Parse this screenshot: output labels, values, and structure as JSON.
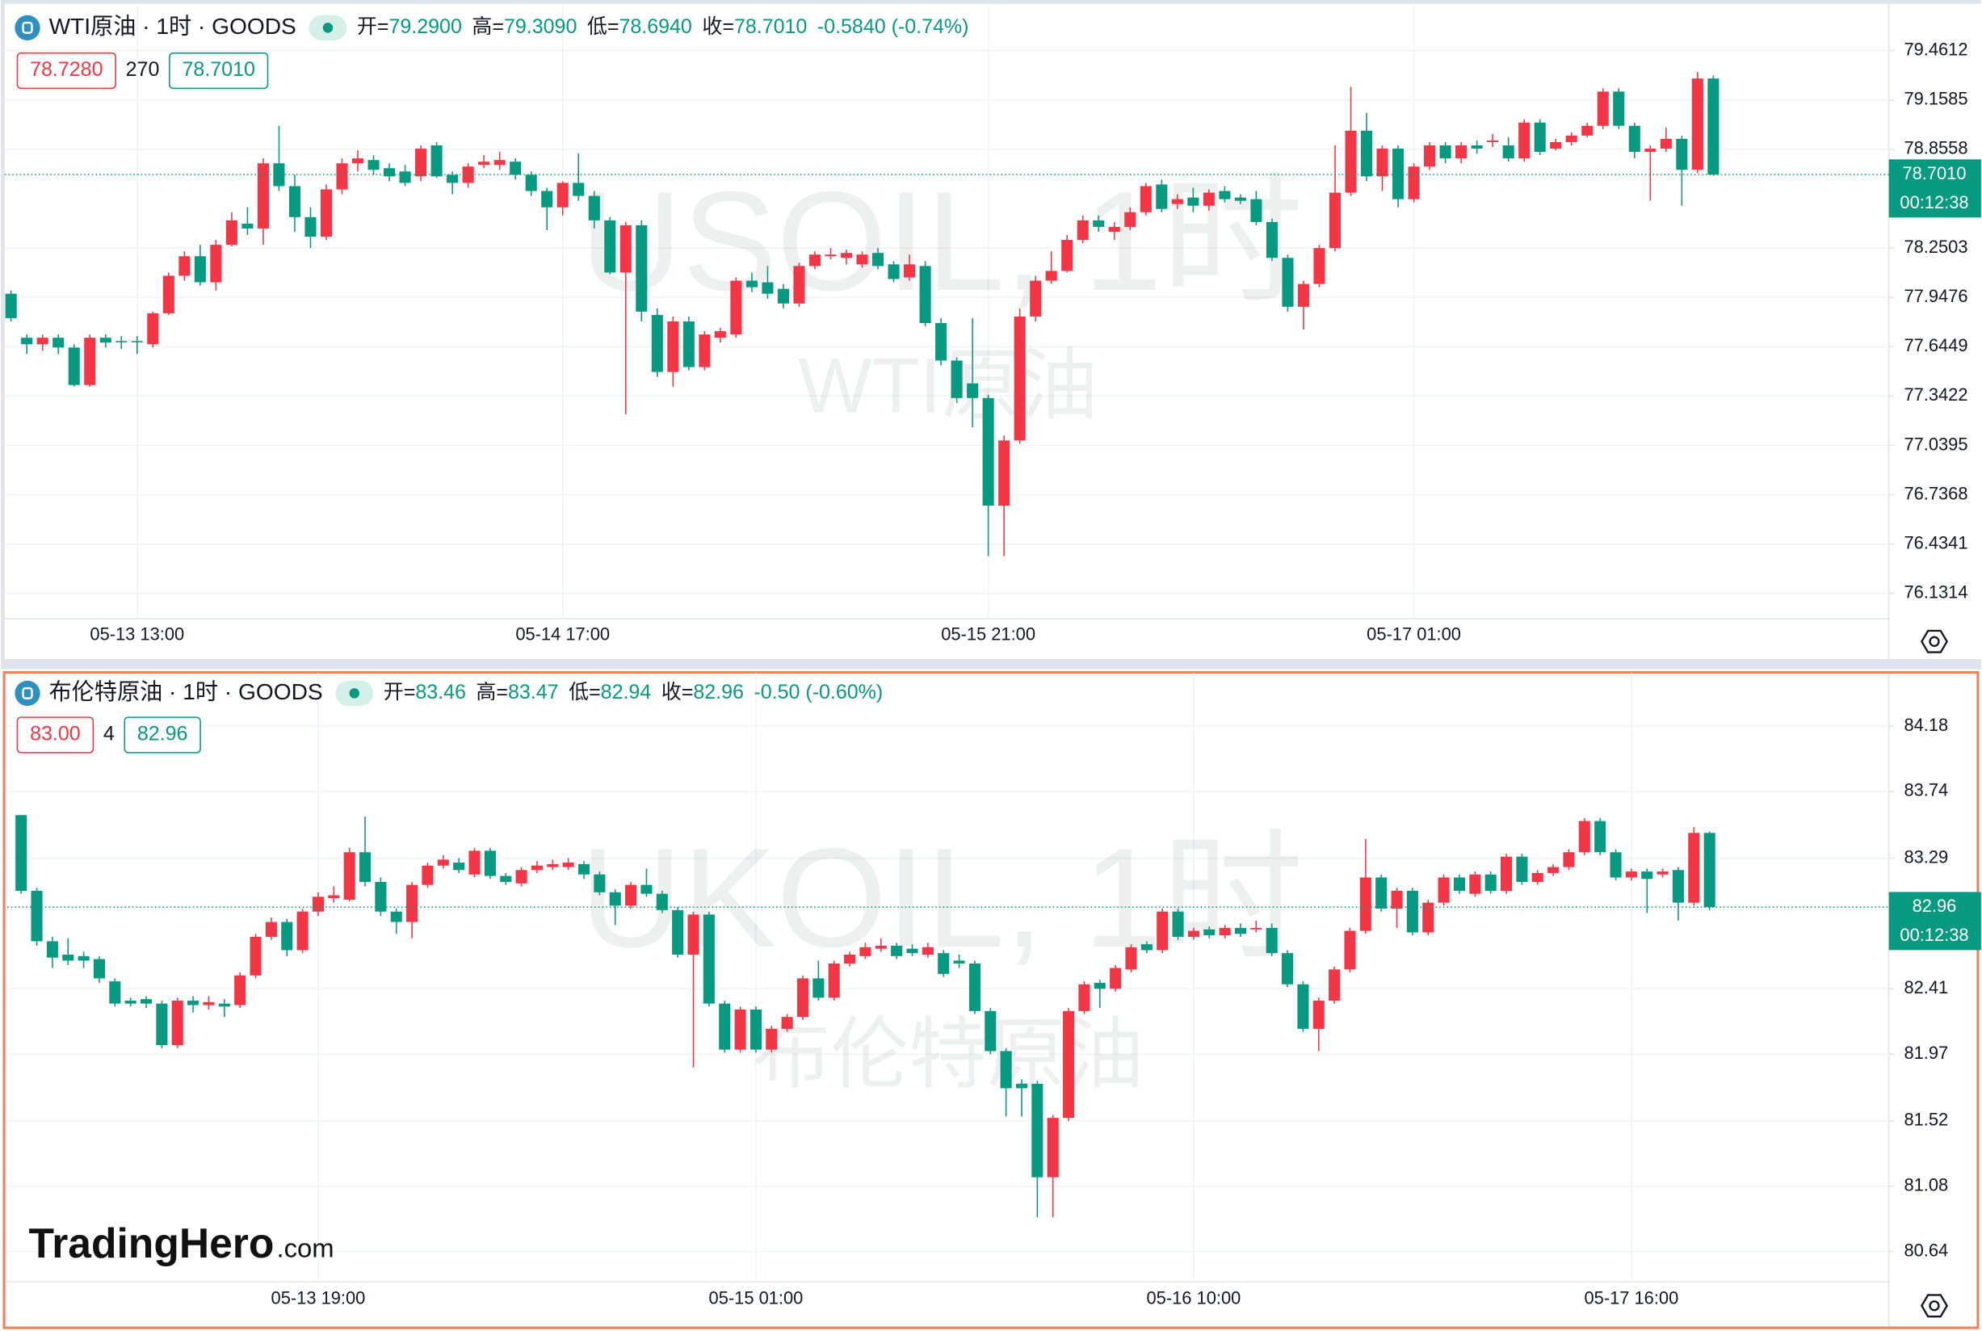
{
  "brand": {
    "name": "TradingHero",
    "suffix": ".com"
  },
  "chart_data": [
    {
      "type": "candlestick",
      "symbol": "WTI原油 · 1时 · GOODS",
      "watermark": "USOIL, 1时",
      "watermark_subtitle": "WTI原油",
      "ohlc_legend": [
        {
          "label": "开=",
          "value": "79.2900"
        },
        {
          "label": "高=",
          "value": "79.3090"
        },
        {
          "label": "低=",
          "value": "78.6940"
        },
        {
          "label": "收=",
          "value": "78.7010"
        }
      ],
      "change": "-0.5840 (-0.74%)",
      "quote": {
        "bid": "78.7280",
        "spread": "270",
        "ask": "78.7010"
      },
      "last_price": {
        "value": 78.701,
        "label": "78.7010",
        "countdown": "00:12:38"
      },
      "up_color": "#f23645",
      "down_color": "#089981",
      "grid": true,
      "ylim": [
        75.976,
        79.733
      ],
      "yticks": [
        79.4612,
        79.1585,
        78.8558,
        78.2503,
        77.9476,
        77.6449,
        77.3422,
        77.0395,
        76.7368,
        76.4341,
        76.1314
      ],
      "categories": [
        null,
        null,
        null,
        null,
        null,
        null,
        null,
        null,
        "05-13 13:00",
        null,
        null,
        null,
        null,
        null,
        null,
        null,
        null,
        null,
        null,
        null,
        null,
        null,
        null,
        null,
        null,
        null,
        null,
        null,
        null,
        null,
        null,
        null,
        null,
        null,
        null,
        "05-14 17:00",
        null,
        null,
        null,
        null,
        null,
        null,
        null,
        null,
        null,
        null,
        null,
        null,
        null,
        null,
        null,
        null,
        null,
        null,
        null,
        null,
        null,
        null,
        null,
        null,
        null,
        null,
        "05-15 21:00",
        null,
        null,
        null,
        null,
        null,
        null,
        null,
        null,
        null,
        null,
        null,
        null,
        null,
        null,
        null,
        null,
        null,
        null,
        null,
        null,
        null,
        null,
        null,
        null,
        null,
        null,
        "05-17 01:00",
        null,
        null,
        null,
        null,
        null,
        null,
        null,
        null,
        null,
        null,
        null,
        null,
        null,
        null,
        null,
        null,
        null,
        null,
        null
      ],
      "open": [
        77.97,
        77.7,
        77.66,
        77.7,
        77.64,
        77.41,
        77.7,
        77.68,
        77.68,
        77.66,
        77.85,
        78.08,
        78.2,
        78.04,
        78.27,
        78.4,
        78.37,
        78.77,
        78.63,
        78.44,
        78.32,
        78.61,
        78.77,
        78.79,
        78.74,
        78.72,
        78.69,
        78.88,
        78.7,
        78.65,
        78.76,
        78.76,
        78.78,
        78.7,
        78.6,
        78.5,
        78.65,
        78.57,
        78.42,
        78.1,
        78.39,
        77.84,
        77.49,
        77.8,
        77.52,
        77.7,
        77.72,
        78.05,
        78.04,
        78.0,
        77.91,
        78.14,
        78.2,
        78.19,
        78.15,
        78.22,
        78.15,
        78.07,
        78.14,
        77.79,
        77.56,
        77.42,
        77.33,
        76.67,
        77.07,
        77.83,
        78.05,
        78.11,
        78.3,
        78.42,
        78.35,
        78.38,
        78.47,
        78.64,
        78.52,
        78.56,
        78.51,
        78.6,
        78.56,
        78.55,
        78.41,
        78.19,
        77.89,
        78.03,
        78.25,
        78.59,
        78.97,
        78.69,
        78.86,
        78.55,
        78.75,
        78.88,
        78.8,
        78.88,
        78.9,
        78.88,
        78.8,
        79.02,
        78.86,
        78.9,
        78.94,
        79.0,
        79.21,
        79.0,
        78.84,
        78.86,
        78.92,
        78.73,
        79.29
      ],
      "high": [
        77.99,
        77.72,
        77.72,
        77.72,
        77.66,
        77.72,
        77.72,
        77.71,
        77.71,
        77.86,
        78.1,
        78.23,
        78.27,
        78.3,
        78.47,
        78.5,
        78.8,
        79.0,
        78.7,
        78.5,
        78.64,
        78.8,
        78.85,
        78.82,
        78.77,
        78.76,
        78.88,
        78.9,
        78.72,
        78.77,
        78.82,
        78.84,
        78.8,
        78.72,
        78.62,
        78.66,
        78.83,
        78.6,
        78.44,
        78.41,
        78.42,
        77.88,
        77.83,
        77.83,
        77.74,
        77.76,
        78.07,
        78.1,
        78.14,
        78.03,
        78.16,
        78.23,
        78.25,
        78.24,
        78.23,
        78.25,
        78.17,
        78.21,
        78.17,
        77.82,
        77.58,
        77.82,
        77.35,
        77.1,
        77.88,
        78.08,
        78.23,
        78.33,
        78.45,
        78.45,
        78.41,
        78.5,
        78.65,
        78.67,
        78.58,
        78.62,
        78.61,
        78.63,
        78.58,
        78.6,
        78.43,
        78.21,
        78.05,
        78.27,
        78.88,
        79.24,
        79.08,
        78.88,
        78.88,
        78.77,
        78.9,
        78.9,
        78.9,
        78.91,
        78.95,
        78.93,
        79.04,
        79.04,
        78.92,
        78.96,
        79.02,
        79.23,
        79.23,
        79.02,
        78.88,
        78.99,
        78.94,
        79.33,
        79.309
      ],
      "low": [
        77.8,
        77.6,
        77.62,
        77.6,
        77.4,
        77.4,
        77.64,
        77.63,
        77.6,
        77.64,
        77.84,
        78.05,
        78.02,
        77.99,
        78.26,
        78.33,
        78.27,
        78.6,
        78.35,
        78.25,
        78.3,
        78.58,
        78.72,
        78.7,
        78.66,
        78.63,
        78.66,
        78.68,
        78.58,
        78.62,
        78.74,
        78.73,
        78.67,
        78.57,
        78.36,
        78.45,
        78.54,
        78.37,
        78.09,
        77.23,
        77.8,
        77.46,
        77.4,
        77.5,
        77.5,
        77.67,
        77.7,
        77.98,
        77.94,
        77.88,
        77.89,
        78.12,
        78.18,
        78.15,
        78.13,
        78.12,
        78.04,
        78.05,
        77.77,
        77.53,
        77.3,
        77.15,
        76.36,
        76.36,
        77.05,
        77.8,
        78.03,
        78.1,
        78.28,
        78.35,
        78.3,
        78.36,
        78.45,
        78.47,
        78.49,
        78.47,
        78.48,
        78.53,
        78.52,
        78.39,
        78.17,
        77.86,
        77.75,
        78.01,
        78.23,
        78.57,
        78.66,
        78.6,
        78.5,
        78.53,
        78.73,
        78.77,
        78.77,
        78.83,
        78.87,
        78.78,
        78.78,
        78.82,
        78.85,
        78.88,
        78.93,
        78.98,
        78.98,
        78.8,
        78.54,
        78.84,
        78.51,
        78.71,
        78.694
      ],
      "close": [
        77.82,
        77.66,
        77.7,
        77.64,
        77.41,
        77.7,
        77.67,
        77.68,
        77.68,
        77.85,
        78.08,
        78.2,
        78.04,
        78.27,
        78.42,
        78.37,
        78.77,
        78.63,
        78.44,
        78.32,
        78.61,
        78.77,
        78.8,
        78.73,
        78.69,
        78.65,
        78.86,
        78.69,
        78.65,
        78.75,
        78.78,
        78.79,
        78.7,
        78.6,
        78.5,
        78.65,
        78.57,
        78.42,
        78.1,
        78.39,
        77.86,
        77.49,
        77.8,
        77.52,
        77.72,
        77.74,
        78.05,
        78.01,
        77.97,
        77.91,
        78.14,
        78.21,
        78.21,
        78.22,
        78.21,
        78.14,
        78.06,
        78.15,
        77.79,
        77.56,
        77.33,
        77.33,
        76.67,
        77.07,
        77.83,
        78.05,
        78.11,
        78.3,
        78.42,
        78.38,
        78.38,
        78.47,
        78.63,
        78.49,
        78.55,
        78.51,
        78.59,
        78.55,
        78.54,
        78.41,
        78.19,
        77.89,
        78.03,
        78.25,
        78.59,
        78.97,
        78.69,
        78.86,
        78.55,
        78.75,
        78.88,
        78.8,
        78.88,
        78.86,
        78.91,
        78.8,
        79.02,
        78.84,
        78.9,
        78.94,
        79.0,
        79.21,
        79.0,
        78.84,
        78.86,
        78.92,
        78.73,
        79.29,
        78.701
      ]
    },
    {
      "type": "candlestick",
      "symbol": "布伦特原油 · 1时 · GOODS",
      "watermark": "UKOIL, 1时",
      "watermark_subtitle": "布伦特原油",
      "ohlc_legend": [
        {
          "label": "开=",
          "value": "83.46"
        },
        {
          "label": "高=",
          "value": "83.47"
        },
        {
          "label": "低=",
          "value": "82.94"
        },
        {
          "label": "收=",
          "value": "82.96"
        }
      ],
      "change": "-0.50 (-0.60%)",
      "quote": {
        "bid": "83.00",
        "spread": "4",
        "ask": "82.96"
      },
      "last_price": {
        "value": 82.96,
        "label": "82.96",
        "countdown": "00:12:38"
      },
      "up_color": "#f23645",
      "down_color": "#089981",
      "grid": true,
      "ylim": [
        80.436,
        84.537
      ],
      "yticks": [
        84.18,
        83.74,
        83.29,
        82.41,
        81.97,
        81.52,
        81.08,
        80.64
      ],
      "categories": [
        null,
        null,
        null,
        null,
        null,
        null,
        null,
        null,
        null,
        null,
        null,
        null,
        null,
        null,
        null,
        null,
        null,
        null,
        null,
        "05-13 19:00",
        null,
        null,
        null,
        null,
        null,
        null,
        null,
        null,
        null,
        null,
        null,
        null,
        null,
        null,
        null,
        null,
        null,
        null,
        null,
        null,
        null,
        null,
        null,
        null,
        null,
        null,
        null,
        "05-15 01:00",
        null,
        null,
        null,
        null,
        null,
        null,
        null,
        null,
        null,
        null,
        null,
        null,
        null,
        null,
        null,
        null,
        null,
        null,
        null,
        null,
        null,
        null,
        null,
        null,
        null,
        null,
        null,
        "05-16 10:00",
        null,
        null,
        null,
        null,
        null,
        null,
        null,
        null,
        null,
        null,
        null,
        null,
        null,
        null,
        null,
        null,
        null,
        null,
        null,
        null,
        null,
        null,
        null,
        null,
        null,
        null,
        null,
        "05-17 16:00",
        null,
        null,
        null,
        null,
        null
      ],
      "open": [
        83.58,
        83.07,
        82.73,
        82.64,
        82.63,
        82.61,
        82.46,
        82.33,
        82.34,
        82.31,
        82.03,
        82.33,
        82.3,
        82.31,
        82.3,
        82.5,
        82.76,
        82.86,
        82.67,
        82.93,
        83.02,
        83.01,
        83.33,
        83.13,
        82.93,
        82.86,
        83.11,
        83.24,
        83.26,
        83.18,
        83.34,
        83.17,
        83.12,
        83.21,
        83.23,
        83.23,
        83.25,
        83.18,
        83.06,
        82.97,
        83.11,
        83.05,
        82.94,
        82.64,
        82.91,
        82.31,
        82.0,
        82.27,
        82.0,
        82.14,
        82.22,
        82.48,
        82.35,
        82.58,
        82.63,
        82.68,
        82.7,
        82.68,
        82.64,
        82.65,
        82.6,
        82.58,
        82.26,
        81.99,
        81.77,
        81.77,
        81.14,
        81.54,
        82.26,
        82.45,
        82.41,
        82.54,
        82.71,
        82.67,
        82.93,
        82.76,
        82.81,
        82.77,
        82.82,
        82.81,
        82.82,
        82.65,
        82.44,
        82.14,
        82.33,
        82.54,
        82.8,
        83.16,
        82.95,
        83.07,
        82.79,
        82.99,
        83.16,
        83.05,
        83.18,
        83.07,
        83.3,
        83.13,
        83.19,
        83.23,
        83.33,
        83.54,
        83.33,
        83.16,
        83.2,
        83.18,
        83.21,
        82.99,
        83.46
      ],
      "high": [
        83.58,
        83.09,
        82.76,
        82.75,
        82.66,
        82.63,
        82.48,
        82.35,
        82.36,
        82.33,
        82.35,
        82.36,
        82.36,
        82.34,
        82.52,
        82.78,
        82.89,
        82.88,
        82.95,
        83.06,
        83.1,
        83.36,
        83.57,
        83.16,
        82.95,
        83.13,
        83.26,
        83.31,
        83.29,
        83.36,
        83.36,
        83.19,
        83.23,
        83.27,
        83.28,
        83.29,
        83.27,
        83.2,
        83.08,
        83.13,
        83.22,
        83.07,
        82.96,
        82.93,
        82.93,
        82.33,
        82.29,
        82.29,
        82.16,
        82.24,
        82.5,
        82.6,
        82.6,
        82.66,
        82.72,
        82.75,
        82.72,
        82.71,
        82.72,
        82.67,
        82.64,
        82.6,
        82.28,
        82.01,
        81.8,
        81.79,
        81.56,
        82.28,
        82.46,
        82.47,
        82.57,
        82.71,
        82.73,
        82.95,
        82.95,
        82.82,
        82.83,
        82.84,
        82.85,
        82.87,
        82.85,
        82.67,
        82.46,
        82.35,
        82.56,
        82.82,
        83.42,
        83.18,
        83.09,
        83.09,
        83.01,
        83.18,
        83.18,
        83.2,
        83.2,
        83.32,
        83.32,
        83.21,
        83.25,
        83.35,
        83.56,
        83.56,
        83.35,
        83.22,
        83.22,
        83.22,
        83.23,
        83.5,
        83.47
      ],
      "low": [
        83.05,
        82.7,
        82.55,
        82.57,
        82.55,
        82.45,
        82.29,
        82.29,
        82.28,
        82.01,
        82.01,
        82.25,
        82.27,
        82.22,
        82.28,
        82.48,
        82.74,
        82.63,
        82.65,
        82.9,
        82.99,
        83.0,
        83.1,
        82.9,
        82.78,
        82.75,
        83.09,
        83.22,
        83.19,
        83.16,
        83.15,
        83.11,
        83.1,
        83.19,
        83.21,
        83.21,
        83.15,
        83.04,
        82.84,
        82.95,
        83.03,
        82.92,
        82.62,
        81.88,
        82.29,
        81.98,
        81.98,
        81.98,
        81.98,
        82.12,
        82.2,
        82.33,
        82.33,
        82.56,
        82.61,
        82.66,
        82.61,
        82.63,
        82.62,
        82.49,
        82.55,
        82.24,
        81.97,
        81.55,
        81.55,
        80.87,
        80.87,
        81.52,
        82.24,
        82.28,
        82.39,
        82.52,
        82.65,
        82.65,
        82.74,
        82.74,
        82.75,
        82.75,
        82.76,
        82.79,
        82.63,
        82.42,
        82.12,
        81.99,
        82.31,
        82.52,
        82.78,
        82.93,
        82.82,
        82.77,
        82.77,
        82.97,
        83.05,
        83.03,
        83.05,
        83.05,
        83.11,
        83.11,
        83.17,
        83.21,
        83.31,
        83.31,
        83.14,
        83.14,
        82.92,
        83.16,
        82.87,
        82.97,
        82.94
      ],
      "close": [
        83.07,
        82.73,
        82.62,
        82.6,
        82.6,
        82.48,
        82.31,
        82.31,
        82.31,
        82.03,
        82.33,
        82.3,
        82.32,
        82.29,
        82.5,
        82.76,
        82.86,
        82.67,
        82.93,
        83.03,
        83.04,
        83.33,
        83.13,
        82.93,
        82.86,
        83.11,
        83.24,
        83.28,
        83.21,
        83.34,
        83.17,
        83.13,
        83.21,
        83.24,
        83.25,
        83.26,
        83.18,
        83.06,
        82.97,
        83.11,
        83.05,
        82.94,
        82.64,
        82.91,
        82.31,
        82.0,
        82.27,
        82.0,
        82.14,
        82.22,
        82.48,
        82.35,
        82.58,
        82.64,
        82.69,
        82.7,
        82.63,
        82.65,
        82.69,
        82.51,
        82.58,
        82.26,
        81.99,
        81.74,
        81.74,
        81.14,
        81.54,
        82.26,
        82.44,
        82.41,
        82.55,
        82.69,
        82.67,
        82.93,
        82.76,
        82.8,
        82.77,
        82.82,
        82.78,
        82.82,
        82.65,
        82.44,
        82.14,
        82.33,
        82.54,
        82.8,
        83.16,
        82.95,
        83.07,
        82.79,
        82.99,
        83.16,
        83.07,
        83.18,
        83.07,
        83.3,
        83.13,
        83.19,
        83.23,
        83.33,
        83.54,
        83.33,
        83.16,
        83.2,
        83.15,
        83.2,
        82.99,
        83.46,
        82.96
      ]
    }
  ]
}
